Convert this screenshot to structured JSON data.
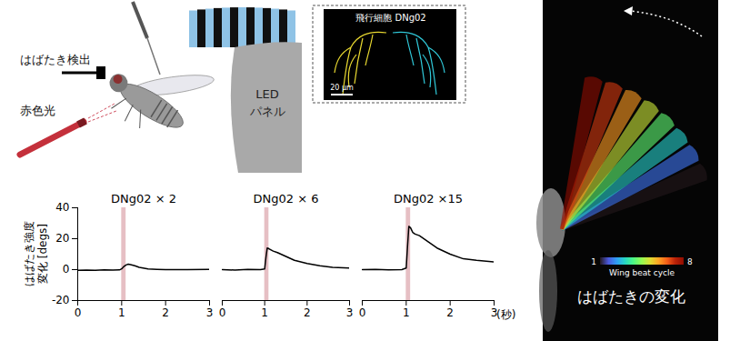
{
  "diagram": {
    "wingbeat_detector": "はばたき検出",
    "red_light": "赤色光",
    "led_panel": [
      "LED",
      "パネル"
    ],
    "neuron_image": {
      "title": "飛行細胞 DNg02",
      "scale_bar": "20 µm"
    },
    "wing_photo": {
      "caption": "はばたきの変化",
      "colorbar": {
        "label": "Wing beat cycle",
        "range": [
          1,
          8
        ],
        "ticks": [
          1,
          8
        ]
      }
    }
  },
  "chart_data": [
    {
      "type": "line",
      "title": "DNg02 × 2",
      "y_label": [
        "はばたき強度",
        "変化 [degs]"
      ],
      "x": [
        0,
        0.2,
        0.4,
        0.6,
        0.8,
        0.95,
        1.0,
        1.05,
        1.1,
        1.15,
        1.2,
        1.3,
        1.4,
        1.6,
        1.8,
        2.0,
        2.5,
        3.0
      ],
      "values": [
        -0.5,
        -0.3,
        -0.4,
        -0.2,
        -0.3,
        -0.2,
        0.5,
        2,
        3,
        3.5,
        3.2,
        2.5,
        1.5,
        0.5,
        0.2,
        0,
        0,
        0.1
      ],
      "color": "#000000",
      "stimulus": {
        "x1": 1.0,
        "x2": 1.1,
        "color": "#e6bfc4"
      },
      "xlim": [
        0,
        3
      ],
      "xticks": [
        0,
        1,
        2,
        3
      ],
      "ylim": [
        -20,
        40
      ],
      "yticks": [
        -20,
        0,
        20,
        40
      ]
    },
    {
      "type": "line",
      "title": "DNg02 × 6",
      "x": [
        0,
        0.3,
        0.6,
        0.9,
        1.0,
        1.03,
        1.06,
        1.1,
        1.2,
        1.3,
        1.5,
        1.7,
        2.0,
        2.3,
        2.6,
        3.0
      ],
      "values": [
        0,
        -0.3,
        0.2,
        0,
        0.5,
        8,
        14,
        13.5,
        12,
        11,
        8.5,
        6,
        4,
        2.5,
        1.5,
        1
      ],
      "color": "#000000",
      "stimulus": {
        "x1": 1.0,
        "x2": 1.1,
        "color": "#e6bfc4"
      },
      "xlim": [
        0,
        3
      ],
      "xticks": [
        0,
        1,
        2,
        3
      ],
      "ylim": [
        -20,
        40
      ],
      "yticks": [
        -20,
        0,
        20,
        40
      ],
      "tick_labels": "x"
    },
    {
      "type": "line",
      "title": "DNg02 ×15",
      "x_label": "(秒)",
      "x": [
        0,
        0.3,
        0.6,
        0.9,
        1.0,
        1.03,
        1.06,
        1.1,
        1.15,
        1.2,
        1.3,
        1.5,
        1.7,
        2.0,
        2.3,
        2.6,
        3.0
      ],
      "values": [
        0,
        0.2,
        -0.2,
        0,
        1,
        15,
        28,
        27,
        24,
        23,
        22,
        18,
        14,
        10,
        7,
        6,
        5
      ],
      "color": "#000000",
      "stimulus": {
        "x1": 1.0,
        "x2": 1.1,
        "color": "#e6bfc4"
      },
      "xlim": [
        0,
        3
      ],
      "xticks": [
        0,
        1,
        2,
        3
      ],
      "ylim": [
        -20,
        40
      ],
      "yticks": [
        -20,
        0,
        20,
        40
      ],
      "tick_labels": "x"
    }
  ]
}
